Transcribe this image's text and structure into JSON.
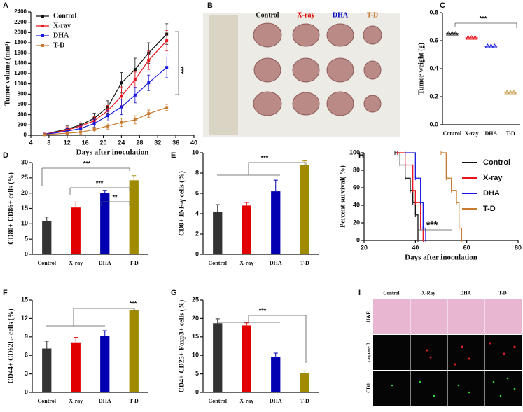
{
  "panels": [
    "A",
    "B",
    "C",
    "D",
    "E",
    "F",
    "G",
    "H",
    "I"
  ],
  "photo_b": {
    "labels": [
      "Control",
      "X-ray",
      "DHA",
      "T-D"
    ]
  },
  "photo_i": {
    "columns": [
      "Control",
      "X-Ray",
      "DHA",
      "T-D"
    ],
    "rows": [
      "H&E",
      "caspase 3",
      "CD8"
    ]
  },
  "chart_data": [
    {
      "type": "line",
      "x_label": "Days after inoculation",
      "y_label": "Tumor volume (mm³)",
      "x": [
        7,
        12,
        15,
        18,
        21,
        24,
        27,
        30,
        34
      ],
      "xlim": [
        4,
        40
      ],
      "xticks": [
        4,
        8,
        12,
        16,
        20,
        24,
        28,
        32,
        36,
        40
      ],
      "ylim": [
        0,
        2400
      ],
      "yticks": [
        0,
        200,
        400,
        600,
        800,
        1000,
        1200,
        1400,
        1600,
        1800,
        2000,
        2200,
        2400
      ],
      "series": [
        {
          "name": "Control",
          "color": "#111111",
          "values": [
            20,
            120,
            200,
            330,
            550,
            1020,
            1280,
            1600,
            1970
          ],
          "errors": [
            20,
            60,
            80,
            100,
            120,
            200,
            220,
            200,
            200
          ]
        },
        {
          "name": "X-ray",
          "color": "#e8141e",
          "values": [
            20,
            100,
            180,
            280,
            480,
            760,
            1080,
            1460,
            1840
          ],
          "errors": [
            20,
            60,
            60,
            80,
            100,
            180,
            150,
            180,
            200
          ]
        },
        {
          "name": "DHA",
          "color": "#1a1adb",
          "values": [
            15,
            80,
            130,
            230,
            380,
            550,
            780,
            1020,
            1320
          ],
          "errors": [
            10,
            50,
            60,
            80,
            100,
            150,
            150,
            150,
            200
          ]
        },
        {
          "name": "T-D",
          "color": "#c87a30",
          "values": [
            10,
            40,
            60,
            110,
            180,
            250,
            300,
            420,
            540
          ],
          "errors": [
            10,
            30,
            40,
            50,
            60,
            80,
            80,
            70,
            60
          ]
        }
      ],
      "legend": "upper left",
      "annotations": [
        "***"
      ]
    },
    {
      "type": "dot",
      "y_label": "Tumor weight (g)",
      "categories": [
        "Control",
        "X-ray",
        "DHA",
        "T-D"
      ],
      "values": [
        0.65,
        0.62,
        0.56,
        0.23
      ],
      "colors": [
        "#111111",
        "#e8141e",
        "#1a1adb",
        "#c8a050"
      ],
      "ylim": [
        0,
        0.8
      ],
      "yticks": [
        {
          "value": 0,
          "label": "0.0"
        },
        0.2,
        0.4,
        0.6,
        0.8
      ],
      "annotations": [
        "***"
      ]
    },
    {
      "type": "bar",
      "y_label": "CD80+ CD86+ cells (%)",
      "categories": [
        "Control",
        "X-ray",
        "DHA",
        "T-D"
      ],
      "values": [
        11,
        15.3,
        20.1,
        24.2
      ],
      "errors": [
        1.2,
        1.8,
        0.8,
        1.5
      ],
      "colors": [
        "#333333",
        "#e00000",
        "#0000b0",
        "#a08a00"
      ],
      "ylim": [
        0,
        30
      ],
      "yticks": [
        0,
        5,
        10,
        15,
        20,
        25,
        30
      ],
      "annotations": [
        "***",
        "***",
        "**"
      ]
    },
    {
      "type": "bar",
      "y_label": "CD8+ INF-γ cells (%)",
      "categories": [
        "Control",
        "X-ray",
        "DHA",
        "T-D"
      ],
      "values": [
        4.2,
        4.8,
        6.2,
        8.8
      ],
      "errors": [
        0.7,
        0.3,
        1.1,
        0.4
      ],
      "colors": [
        "#333333",
        "#e00000",
        "#0000b0",
        "#a08a00"
      ],
      "ylim": [
        0,
        10
      ],
      "yticks": [
        0,
        2,
        4,
        6,
        8,
        10
      ],
      "annotations": [
        "***"
      ]
    },
    {
      "type": "step",
      "x_label": "Days after inoculation",
      "y_label": "Percent survival( %)",
      "xlim": [
        20,
        80
      ],
      "xticks": [
        20,
        40,
        60,
        80
      ],
      "ylim": [
        0,
        100
      ],
      "yticks": [
        0,
        20,
        40,
        60,
        80,
        100
      ],
      "series": [
        {
          "name": "Control",
          "color": "#111111",
          "x": [
            32,
            34,
            36,
            38,
            39,
            40,
            41
          ],
          "values": [
            100,
            86,
            71,
            57,
            43,
            29,
            0
          ]
        },
        {
          "name": "X-ray",
          "color": "#e8141e",
          "x": [
            33,
            36,
            39,
            40,
            42,
            43
          ],
          "values": [
            100,
            86,
            57,
            43,
            14,
            0
          ]
        },
        {
          "name": "DHA",
          "color": "#1a1adb",
          "x": [
            36,
            40,
            42,
            43,
            44
          ],
          "values": [
            100,
            71,
            43,
            14,
            0
          ]
        },
        {
          "name": "T-D",
          "color": "#c87a30",
          "x": [
            50,
            52,
            54,
            56,
            57,
            58
          ],
          "values": [
            100,
            71,
            57,
            43,
            14,
            0
          ]
        }
      ],
      "legend": "upper right",
      "annotations": [
        "***"
      ]
    },
    {
      "type": "bar",
      "y_label": "CD44+ CD62L- cells (%)",
      "categories": [
        "Control",
        "X-ray",
        "DHA",
        "T-D"
      ],
      "values": [
        7.1,
        8.1,
        9.1,
        13.3
      ],
      "errors": [
        1.2,
        0.8,
        0.9,
        0.4
      ],
      "colors": [
        "#333333",
        "#e00000",
        "#0000b0",
        "#a08a00"
      ],
      "ylim": [
        0,
        15
      ],
      "yticks": [
        0,
        3,
        6,
        9,
        12,
        15
      ],
      "annotations": [
        "***"
      ]
    },
    {
      "type": "bar",
      "y_label": "CD4+ CD25+ Foxp3+ cells (%)",
      "categories": [
        "Control",
        "X-ray",
        "DHA",
        "T-D"
      ],
      "values": [
        18.7,
        18.1,
        9.5,
        5.2
      ],
      "errors": [
        1.2,
        0.7,
        1.1,
        0.6
      ],
      "colors": [
        "#333333",
        "#e00000",
        "#0000b0",
        "#a08a00"
      ],
      "ylim": [
        0,
        25
      ],
      "yticks": [
        0,
        5,
        10,
        15,
        20,
        25
      ],
      "annotations": [
        "***"
      ]
    }
  ]
}
